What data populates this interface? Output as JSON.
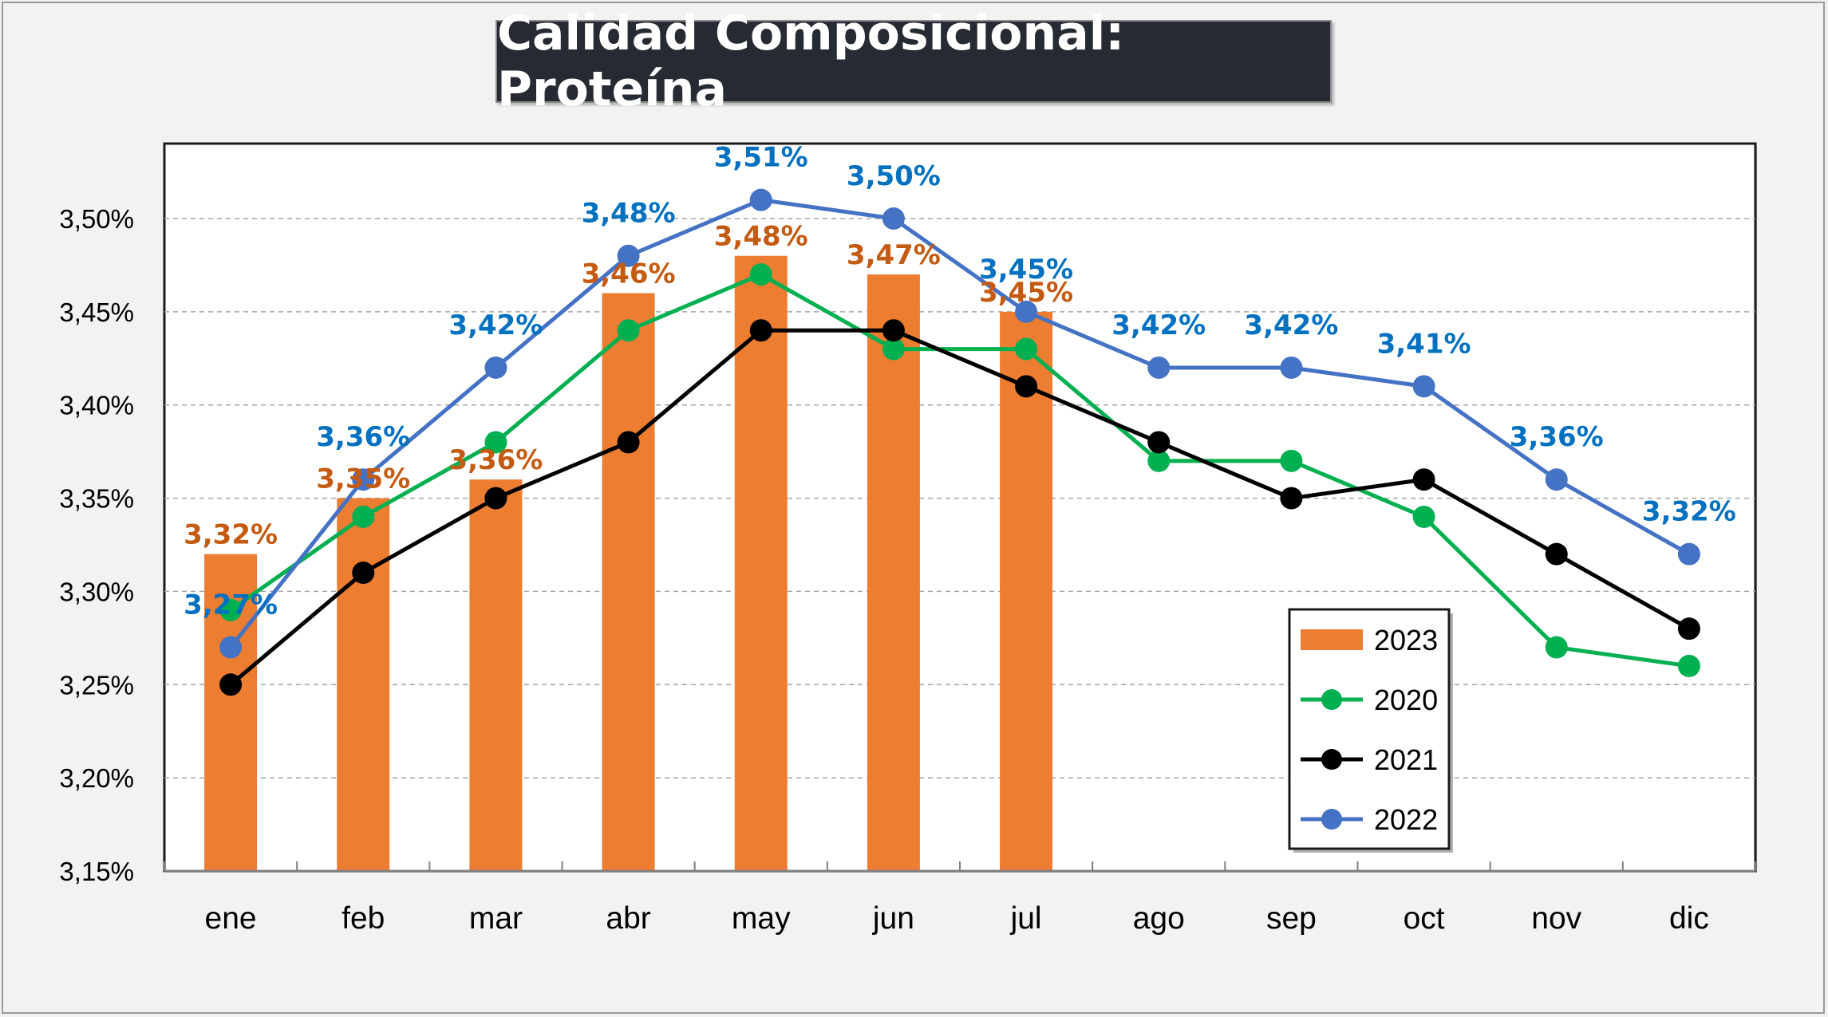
{
  "chart_data": {
    "type": "bar",
    "title": "Calidad Composicional: Proteína",
    "categories": [
      "ene",
      "feb",
      "mar",
      "abr",
      "may",
      "jun",
      "jul",
      "ago",
      "sep",
      "oct",
      "nov",
      "dic"
    ],
    "ylim": [
      3.15,
      3.55
    ],
    "yticks": [
      3.15,
      3.2,
      3.25,
      3.3,
      3.35,
      3.4,
      3.45,
      3.5
    ],
    "ytick_labels": [
      "3,15%",
      "3,20%",
      "3,25%",
      "3,30%",
      "3,35%",
      "3,40%",
      "3,45%",
      "3,50%"
    ],
    "grid": true,
    "legend_position": "bottom-right",
    "series": [
      {
        "name": "2023",
        "type": "bar",
        "color": "#ed7d31",
        "label_color": "#c55a11",
        "values": [
          3.32,
          3.35,
          3.36,
          3.46,
          3.48,
          3.47,
          3.45,
          null,
          null,
          null,
          null,
          null
        ],
        "labels": [
          "3,32%",
          "3,35%",
          "3,36%",
          "3,46%",
          "3,48%",
          "3,47%",
          "3,45%",
          null,
          null,
          null,
          null,
          null
        ]
      },
      {
        "name": "2020",
        "type": "line",
        "color": "#00b050",
        "values": [
          3.29,
          3.34,
          3.38,
          3.44,
          3.47,
          3.43,
          3.43,
          3.37,
          3.37,
          3.34,
          3.27,
          3.26
        ]
      },
      {
        "name": "2021",
        "type": "line",
        "color": "#000000",
        "values": [
          3.25,
          3.31,
          3.35,
          3.38,
          3.44,
          3.44,
          3.41,
          3.38,
          3.35,
          3.36,
          3.32,
          3.28
        ]
      },
      {
        "name": "2022",
        "type": "line",
        "color": "#4472c4",
        "label_color": "#0070c0",
        "values": [
          3.27,
          3.36,
          3.42,
          3.48,
          3.51,
          3.5,
          3.45,
          3.42,
          3.42,
          3.41,
          3.36,
          3.32
        ],
        "labels": [
          "3,27%",
          "3,36%",
          "3,42%",
          "3,48%",
          "3,51%",
          "3,50%",
          "3,45%",
          "3,42%",
          "3,42%",
          "3,41%",
          "3,36%",
          "3,32%"
        ]
      }
    ],
    "legend_order": [
      "2023",
      "2020",
      "2021",
      "2022"
    ]
  }
}
